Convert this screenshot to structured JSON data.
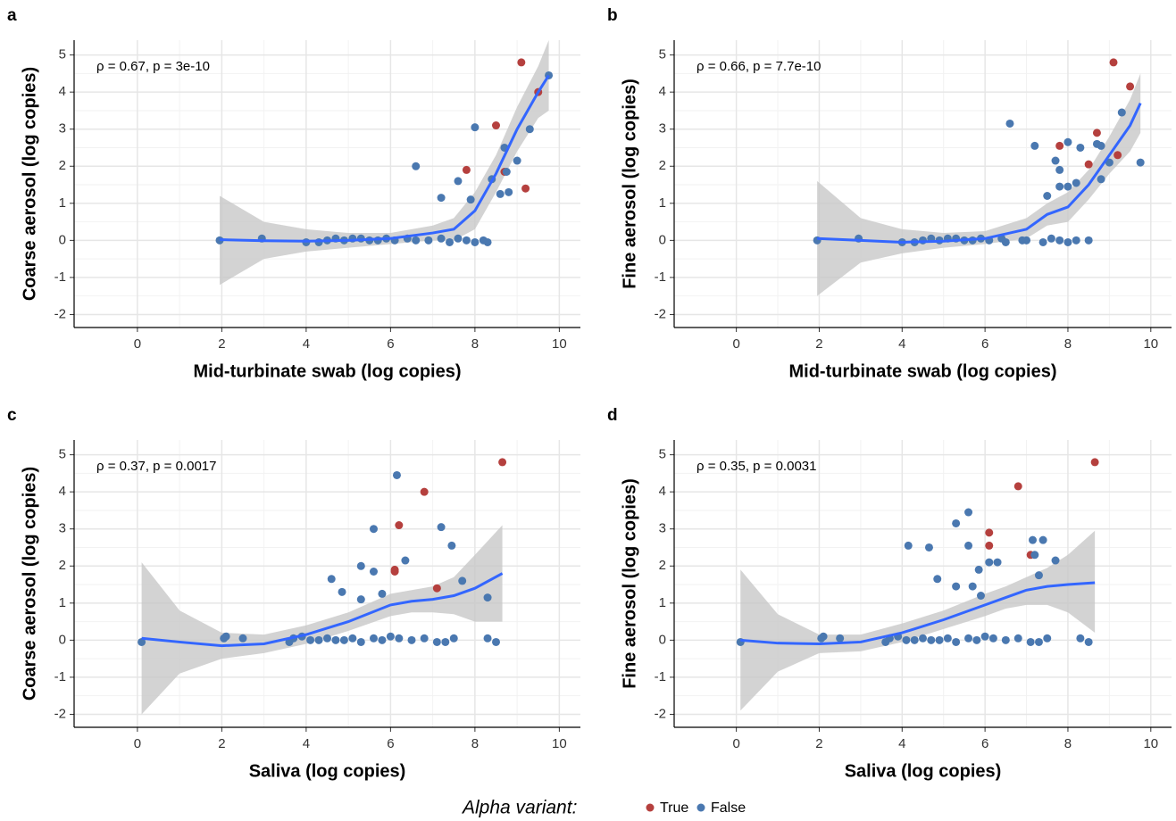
{
  "legend": {
    "title": "Alpha variant:",
    "position": "bottom"
  },
  "chart_data": [
    {
      "type": "scatter",
      "panel": "a",
      "annotation": "ρ = 0.67, p = 3e-10",
      "x_label": "Mid-turbinate swab (log copies)",
      "y_label": "Coarse aerosol (log copies)",
      "xlim": [
        -1.5,
        10.5
      ],
      "ylim": [
        -2.35,
        5.4
      ],
      "xticks": [
        0,
        2,
        4,
        6,
        8,
        10
      ],
      "yticks": [
        -2,
        -1,
        0,
        1,
        2,
        3,
        4,
        5
      ],
      "grid": true,
      "series": [
        {
          "name": "True",
          "color": "#b5403e",
          "x": [
            9.1,
            9.5,
            8.5,
            7.8,
            8.7,
            9.2
          ],
          "values": [
            4.8,
            4.0,
            3.1,
            1.9,
            1.85,
            1.4
          ]
        },
        {
          "name": "False",
          "color": "#4a78b0",
          "x": [
            1.95,
            2.95,
            4.0,
            4.3,
            4.5,
            4.7,
            4.9,
            5.1,
            5.3,
            5.5,
            5.7,
            5.9,
            6.1,
            6.4,
            6.6,
            6.9,
            7.2,
            7.4,
            7.6,
            7.8,
            8.0,
            8.2,
            8.3,
            6.6,
            7.2,
            7.9,
            7.6,
            8.0,
            8.4,
            8.6,
            8.7,
            8.8,
            9.0,
            9.3,
            9.75,
            8.75
          ],
          "values": [
            0,
            0.05,
            -0.05,
            -0.05,
            0,
            0.05,
            0,
            0.05,
            0.05,
            0,
            0,
            0.05,
            0,
            0.05,
            0,
            0,
            0.05,
            -0.05,
            0.05,
            0,
            -0.05,
            0,
            -0.05,
            2.0,
            1.15,
            1.1,
            1.6,
            3.05,
            1.65,
            1.25,
            2.5,
            1.3,
            2.15,
            3.0,
            4.45,
            1.85
          ]
        }
      ],
      "smooth": {
        "color": "#3366ff",
        "band_color": "#c8c8c8",
        "x": [
          1.95,
          3,
          4,
          5,
          6,
          7,
          7.5,
          8,
          8.5,
          9,
          9.5,
          9.75
        ],
        "values": [
          0.02,
          -0.01,
          -0.02,
          0,
          0.05,
          0.2,
          0.3,
          0.8,
          1.8,
          3.0,
          4.0,
          4.45
        ],
        "lower": [
          -1.2,
          -0.5,
          -0.3,
          -0.2,
          -0.1,
          0.0,
          0.0,
          0.3,
          1.3,
          2.4,
          3.3,
          3.5
        ],
        "upper": [
          1.2,
          0.5,
          0.3,
          0.2,
          0.2,
          0.4,
          0.6,
          1.3,
          2.3,
          3.6,
          4.7,
          5.4
        ]
      }
    },
    {
      "type": "scatter",
      "panel": "b",
      "annotation": "ρ = 0.66, p = 7.7e-10",
      "x_label": "Mid-turbinate swab (log copies)",
      "y_label": "Fine aerosol (log copies)",
      "xlim": [
        -1.5,
        10.5
      ],
      "ylim": [
        -2.35,
        5.4
      ],
      "xticks": [
        0,
        2,
        4,
        6,
        8,
        10
      ],
      "yticks": [
        -2,
        -1,
        0,
        1,
        2,
        3,
        4,
        5
      ],
      "grid": true,
      "series": [
        {
          "color": "#b5403e",
          "x": [
            9.1,
            9.5,
            8.7,
            7.8,
            8.5,
            9.2
          ],
          "values": [
            4.8,
            4.15,
            2.9,
            2.55,
            2.05,
            2.3
          ]
        },
        {
          "color": "#4a78b0",
          "x": [
            1.95,
            2.95,
            4.0,
            4.3,
            4.5,
            4.7,
            4.9,
            5.1,
            5.3,
            5.5,
            5.7,
            5.9,
            6.1,
            6.4,
            6.5,
            6.9,
            7.0,
            7.4,
            7.6,
            7.8,
            8.0,
            8.2,
            8.5,
            6.6,
            7.2,
            7.7,
            7.8,
            8.0,
            7.5,
            7.8,
            8.0,
            8.2,
            8.3,
            8.7,
            8.8,
            8.8,
            9.0,
            9.3,
            9.75
          ],
          "values": [
            0,
            0.05,
            -0.05,
            -0.05,
            0,
            0.05,
            0,
            0.05,
            0.05,
            0,
            0,
            0.05,
            0,
            0.05,
            -0.05,
            0,
            0,
            -0.05,
            0.05,
            0,
            -0.05,
            0,
            0,
            3.15,
            2.55,
            2.15,
            1.9,
            2.65,
            1.2,
            1.45,
            1.45,
            1.55,
            2.5,
            2.6,
            2.55,
            1.65,
            2.1,
            3.45,
            2.1
          ]
        }
      ],
      "smooth": {
        "color": "#3366ff",
        "band_color": "#c8c8c8",
        "x": [
          1.95,
          3,
          4,
          5,
          6,
          7,
          7.5,
          8,
          8.5,
          9,
          9.5,
          9.75
        ],
        "values": [
          0.05,
          0,
          -0.05,
          -0.02,
          0.05,
          0.3,
          0.7,
          0.9,
          1.5,
          2.3,
          3.1,
          3.7
        ],
        "lower": [
          -1.5,
          -0.6,
          -0.35,
          -0.2,
          -0.1,
          0.05,
          0.4,
          0.5,
          1.1,
          1.8,
          2.4,
          2.9
        ],
        "upper": [
          1.6,
          0.6,
          0.3,
          0.2,
          0.25,
          0.6,
          1.0,
          1.3,
          1.9,
          2.8,
          3.8,
          4.5
        ]
      }
    },
    {
      "type": "scatter",
      "panel": "c",
      "annotation": "ρ = 0.37, p = 0.0017",
      "x_label": "Saliva (log copies)",
      "y_label": "Coarse aerosol (log copies)",
      "xlim": [
        -1.5,
        10.5
      ],
      "ylim": [
        -2.35,
        5.4
      ],
      "xticks": [
        0,
        2,
        4,
        6,
        8,
        10
      ],
      "yticks": [
        -2,
        -1,
        0,
        1,
        2,
        3,
        4,
        5
      ],
      "grid": true,
      "series": [
        {
          "color": "#b5403e",
          "x": [
            8.65,
            6.8,
            6.2,
            6.1,
            6.1,
            7.1
          ],
          "values": [
            4.8,
            4.0,
            3.1,
            1.85,
            1.9,
            1.4
          ]
        },
        {
          "color": "#4a78b0",
          "x": [
            0.1,
            2.05,
            2.1,
            2.5,
            3.6,
            3.7,
            3.9,
            4.1,
            4.3,
            4.5,
            4.7,
            4.9,
            5.1,
            5.3,
            5.6,
            5.8,
            6.0,
            6.2,
            6.5,
            6.8,
            7.1,
            7.3,
            7.5,
            8.3,
            8.5,
            4.6,
            4.85,
            5.3,
            5.3,
            5.6,
            5.6,
            5.8,
            6.15,
            6.35,
            7.2,
            7.45,
            7.7,
            8.3
          ],
          "values": [
            -0.05,
            0.05,
            0.1,
            0.05,
            -0.05,
            0.05,
            0.1,
            0,
            0,
            0.05,
            0,
            0,
            0.05,
            -0.05,
            0.05,
            0,
            0.1,
            0.05,
            0,
            0.05,
            -0.05,
            -0.05,
            0.05,
            0.05,
            -0.05,
            1.65,
            1.3,
            2.0,
            1.1,
            3.0,
            1.85,
            1.25,
            4.45,
            2.15,
            3.05,
            2.55,
            1.6,
            1.15
          ]
        }
      ],
      "smooth": {
        "color": "#3366ff",
        "band_color": "#c8c8c8",
        "x": [
          0.1,
          1,
          2,
          3,
          4,
          5,
          6,
          6.5,
          7,
          7.5,
          8,
          8.65
        ],
        "values": [
          0.05,
          -0.05,
          -0.15,
          -0.1,
          0.15,
          0.5,
          0.95,
          1.05,
          1.1,
          1.2,
          1.4,
          1.8
        ],
        "lower": [
          -2.0,
          -0.9,
          -0.5,
          -0.35,
          -0.1,
          0.25,
          0.65,
          0.75,
          0.75,
          0.7,
          0.5,
          0.5
        ],
        "upper": [
          2.1,
          0.8,
          0.2,
          0.15,
          0.4,
          0.75,
          1.25,
          1.35,
          1.45,
          1.7,
          2.3,
          3.1
        ]
      }
    },
    {
      "type": "scatter",
      "panel": "d",
      "annotation": "ρ = 0.35, p = 0.0031",
      "x_label": "Saliva (log copies)",
      "y_label": "Fine aerosol (log copies)",
      "xlim": [
        -1.5,
        10.5
      ],
      "ylim": [
        -2.35,
        5.4
      ],
      "xticks": [
        0,
        2,
        4,
        6,
        8,
        10
      ],
      "yticks": [
        -2,
        -1,
        0,
        1,
        2,
        3,
        4,
        5
      ],
      "grid": true,
      "series": [
        {
          "color": "#b5403e",
          "x": [
            8.65,
            6.8,
            6.1,
            6.1,
            7.1
          ],
          "values": [
            4.8,
            4.15,
            2.9,
            2.55,
            2.3
          ]
        },
        {
          "color": "#4a78b0",
          "x": [
            0.1,
            2.05,
            2.1,
            2.5,
            3.6,
            3.7,
            3.9,
            4.1,
            4.3,
            4.5,
            4.7,
            4.9,
            5.1,
            5.3,
            5.6,
            5.8,
            6.0,
            6.2,
            6.5,
            6.8,
            7.1,
            7.3,
            7.5,
            8.3,
            8.5,
            4.15,
            4.65,
            4.85,
            5.3,
            5.3,
            5.6,
            5.6,
            5.7,
            5.85,
            5.9,
            6.1,
            6.3,
            7.15,
            7.2,
            7.4,
            7.3,
            7.7
          ],
          "values": [
            -0.05,
            0.05,
            0.1,
            0.05,
            -0.05,
            0.05,
            0.1,
            0,
            0,
            0.05,
            0,
            0,
            0.05,
            -0.05,
            0.05,
            0,
            0.1,
            0.05,
            0,
            0.05,
            -0.05,
            -0.05,
            0.05,
            0.05,
            -0.05,
            2.55,
            2.5,
            1.65,
            3.15,
            1.45,
            3.45,
            2.55,
            1.45,
            1.9,
            1.2,
            2.1,
            2.1,
            2.7,
            2.3,
            2.7,
            1.75,
            2.15
          ]
        }
      ],
      "smooth": {
        "color": "#3366ff",
        "band_color": "#c8c8c8",
        "x": [
          0.1,
          1,
          2,
          3,
          4,
          5,
          6,
          6.5,
          7,
          7.5,
          8,
          8.65
        ],
        "values": [
          0,
          -0.08,
          -0.1,
          -0.05,
          0.2,
          0.55,
          0.95,
          1.15,
          1.35,
          1.45,
          1.5,
          1.55
        ],
        "lower": [
          -1.9,
          -0.85,
          -0.35,
          -0.3,
          -0.05,
          0.3,
          0.65,
          0.85,
          0.95,
          0.95,
          0.75,
          0.2
        ],
        "upper": [
          1.9,
          0.7,
          0.15,
          0.15,
          0.45,
          0.8,
          1.25,
          1.45,
          1.7,
          1.95,
          2.3,
          2.95
        ]
      }
    }
  ]
}
